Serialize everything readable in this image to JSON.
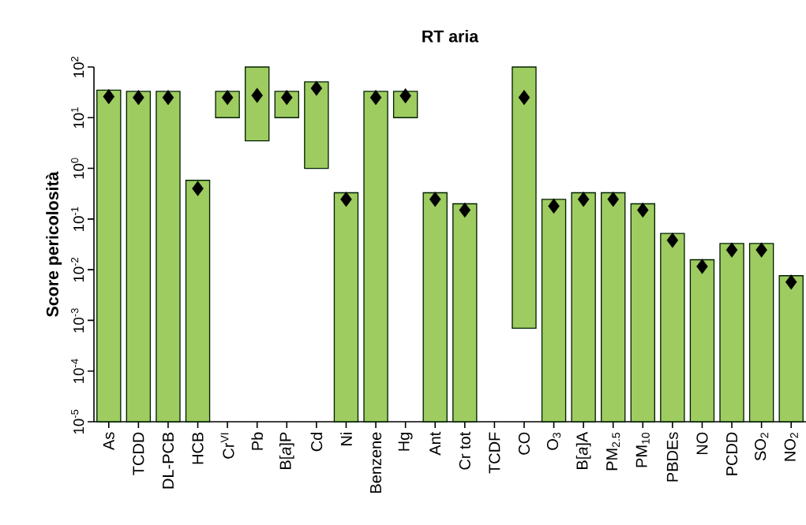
{
  "chart_data": {
    "type": "bar",
    "title": "RT aria",
    "ylabel": "Score pericolosità",
    "categories": [
      "As",
      "TCDD",
      "DL-PCB",
      "HCB",
      "Cr$^{VI}$",
      "Pb",
      "B[*a*]P",
      "Cd",
      "Ni",
      "Benzene",
      "Hg",
      "Ant",
      "Cr tot",
      "TCDF",
      "CO",
      "O$_{3}$",
      "B[*a*]A",
      "PM$_{2.5}$",
      "PM$_{10}$",
      "PBDEs",
      "NO",
      "PCDD",
      "SO$_{2}$",
      "NO$_{2}$"
    ],
    "log": "y",
    "ylim": [
      1e-05,
      100
    ],
    "yticks": [
      {
        "value": 1e-05,
        "label": "10$^{-5}$"
      },
      {
        "value": 0.0001,
        "label": "10$^{-4}$"
      },
      {
        "value": 0.001,
        "label": "10$^{-3}$"
      },
      {
        "value": 0.01,
        "label": "10$^{-2}$"
      },
      {
        "value": 0.1,
        "label": "10$^{-1}$"
      },
      {
        "value": 1,
        "label": "10$^{0}$"
      },
      {
        "value": 10,
        "label": "10$^{1}$"
      },
      {
        "value": 100,
        "label": "10$^{2}$"
      }
    ],
    "marker": "diamond",
    "series": [
      {
        "color": "#9fcc60",
        "values": [
          35,
          33,
          33,
          0.58,
          23,
          96.5,
          23,
          50,
          0.33,
          33,
          23,
          0.33,
          0.2,
          null,
          99.9993,
          0.245,
          0.33,
          0.33,
          0.2,
          0.052,
          0.0157,
          0.033,
          0.033,
          0.0076
        ],
        "base": [
          null,
          null,
          null,
          null,
          10,
          3.5,
          10,
          1,
          null,
          null,
          10,
          null,
          null,
          null,
          0.0007,
          null,
          null,
          null,
          null,
          null,
          null,
          null,
          null,
          null
        ]
      },
      {
        "type": "scatter",
        "color": "#000000",
        "values": [
          26,
          25,
          25,
          0.4,
          25,
          27.5,
          25,
          38,
          0.245,
          25,
          27,
          0.245,
          0.15,
          null,
          25,
          0.18,
          0.245,
          0.245,
          0.15,
          0.038,
          0.0116,
          0.0245,
          0.0245,
          0.0057
        ]
      }
    ]
  }
}
